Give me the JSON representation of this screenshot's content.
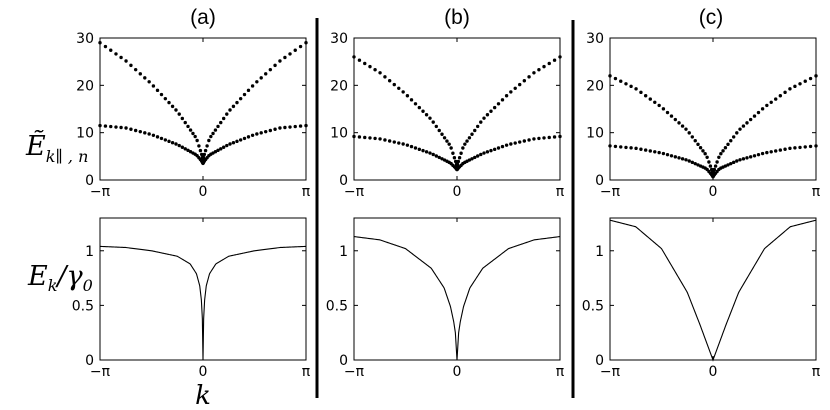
{
  "figure": {
    "panel_labels": [
      "(a)",
      "(b)",
      "(c)"
    ],
    "row_labels": {
      "top_main": "Ẽ",
      "top_sub": "k∥ , n",
      "bottom_main": "E",
      "bottom_sub": "k",
      "bottom_suffix": "/γ",
      "bottom_suffix_sub": "0"
    },
    "xlabel": "k"
  },
  "chart_data": [
    {
      "type": "scatter",
      "row": "top",
      "panel": "(a)",
      "xlim": [
        -3.1416,
        3.1416
      ],
      "ylim": [
        0,
        30
      ],
      "xticks": [
        "−π",
        "0",
        "π"
      ],
      "yticks": [
        "0",
        "10",
        "20",
        "30"
      ],
      "series": [
        {
          "x": [
            -3.1416,
            -2.356,
            -1.571,
            -0.785,
            -0.2,
            -0.05,
            0,
            0.05,
            0.2,
            0.785,
            1.571,
            2.356,
            3.1416
          ],
          "values": [
            29,
            25.2,
            20.3,
            14.5,
            8.8,
            5.6,
            4.5,
            5.6,
            8.8,
            14.5,
            20.3,
            25.2,
            29
          ]
        },
        {
          "x": [
            -3.1416,
            -2.356,
            -1.571,
            -0.785,
            -0.2,
            -0.05,
            0,
            0.05,
            0.2,
            0.785,
            1.571,
            2.356,
            3.1416
          ],
          "values": [
            11.5,
            11,
            9.6,
            7.5,
            5.3,
            4.1,
            3.5,
            4.1,
            5.3,
            7.5,
            9.6,
            11,
            11.5
          ]
        }
      ]
    },
    {
      "type": "scatter",
      "row": "top",
      "panel": "(b)",
      "xlim": [
        -3.1416,
        3.1416
      ],
      "ylim": [
        0,
        30
      ],
      "xticks": [
        "−π",
        "0",
        "π"
      ],
      "yticks": [
        "0",
        "10",
        "20",
        "30"
      ],
      "series": [
        {
          "x": [
            -3.1416,
            -2.356,
            -1.571,
            -0.785,
            -0.2,
            -0.05,
            0,
            0.05,
            0.2,
            0.785,
            1.571,
            2.356,
            3.1416
          ],
          "values": [
            26,
            22.7,
            18.2,
            12.8,
            7.2,
            4.1,
            3.0,
            4.1,
            7.2,
            12.8,
            18.2,
            22.7,
            26
          ]
        },
        {
          "x": [
            -3.1416,
            -2.356,
            -1.571,
            -0.785,
            -0.2,
            -0.05,
            0,
            0.05,
            0.2,
            0.785,
            1.571,
            2.356,
            3.1416
          ],
          "values": [
            9.2,
            8.7,
            7.5,
            5.6,
            3.6,
            2.6,
            2.2,
            2.6,
            3.6,
            5.6,
            7.5,
            8.7,
            9.2
          ]
        }
      ]
    },
    {
      "type": "scatter",
      "row": "top",
      "panel": "(c)",
      "xlim": [
        -3.1416,
        3.1416
      ],
      "ylim": [
        0,
        30
      ],
      "xticks": [
        "−π",
        "0",
        "π"
      ],
      "yticks": [
        "0",
        "10",
        "20",
        "30"
      ],
      "series": [
        {
          "x": [
            -3.1416,
            -2.356,
            -1.571,
            -0.785,
            -0.2,
            -0.05,
            0,
            0.05,
            0.2,
            0.785,
            1.571,
            2.356,
            3.1416
          ],
          "values": [
            22,
            19.3,
            15.4,
            10.5,
            5.2,
            2.4,
            1.4,
            2.4,
            5.2,
            10.5,
            15.4,
            19.3,
            22
          ]
        },
        {
          "x": [
            -3.1416,
            -2.356,
            -1.571,
            -0.785,
            -0.2,
            -0.05,
            0,
            0.05,
            0.2,
            0.785,
            1.571,
            2.356,
            3.1416
          ],
          "values": [
            7.2,
            6.7,
            5.7,
            4.2,
            2.4,
            1.2,
            0.7,
            1.2,
            2.4,
            4.2,
            5.7,
            6.7,
            7.2
          ]
        }
      ]
    },
    {
      "type": "line",
      "row": "bottom",
      "panel": "(a)",
      "xlim": [
        -3.1416,
        3.1416
      ],
      "ylim": [
        0,
        1.3
      ],
      "xticks": [
        "−π",
        "0",
        "π"
      ],
      "yticks": [
        "0",
        "0.5",
        "1"
      ],
      "series": [
        {
          "x": [
            -3.1416,
            -2.356,
            -1.571,
            -0.785,
            -0.393,
            -0.2,
            -0.1,
            -0.05,
            -0.02,
            0,
            0.02,
            0.05,
            0.1,
            0.2,
            0.393,
            0.785,
            1.571,
            2.356,
            3.1416
          ],
          "values": [
            1.04,
            1.03,
            1.0,
            0.95,
            0.88,
            0.79,
            0.68,
            0.55,
            0.38,
            0,
            0.38,
            0.55,
            0.68,
            0.79,
            0.88,
            0.95,
            1.0,
            1.03,
            1.04
          ]
        }
      ]
    },
    {
      "type": "line",
      "row": "bottom",
      "panel": "(b)",
      "xlim": [
        -3.1416,
        3.1416
      ],
      "ylim": [
        0,
        1.3
      ],
      "xticks": [
        "−π",
        "0",
        "π"
      ],
      "yticks": [
        "0",
        "0.5",
        "1"
      ],
      "series": [
        {
          "x": [
            -3.1416,
            -2.356,
            -1.571,
            -0.785,
            -0.393,
            -0.2,
            -0.1,
            -0.05,
            0,
            0.05,
            0.1,
            0.2,
            0.393,
            0.785,
            1.571,
            2.356,
            3.1416
          ],
          "values": [
            1.13,
            1.1,
            1.02,
            0.84,
            0.66,
            0.49,
            0.35,
            0.25,
            0,
            0.25,
            0.35,
            0.49,
            0.66,
            0.84,
            1.02,
            1.1,
            1.13
          ]
        }
      ]
    },
    {
      "type": "line",
      "row": "bottom",
      "panel": "(c)",
      "xlim": [
        -3.1416,
        3.1416
      ],
      "ylim": [
        0,
        1.3
      ],
      "xticks": [
        "−π",
        "0",
        "π"
      ],
      "yticks": [
        "0",
        "0.5",
        "1"
      ],
      "series": [
        {
          "x": [
            -3.1416,
            -2.356,
            -1.571,
            -0.785,
            -0.393,
            0,
            0.393,
            0.785,
            1.571,
            2.356,
            3.1416
          ],
          "values": [
            1.28,
            1.22,
            1.02,
            0.62,
            0.32,
            0,
            0.32,
            0.62,
            1.02,
            1.22,
            1.28
          ]
        }
      ]
    }
  ]
}
